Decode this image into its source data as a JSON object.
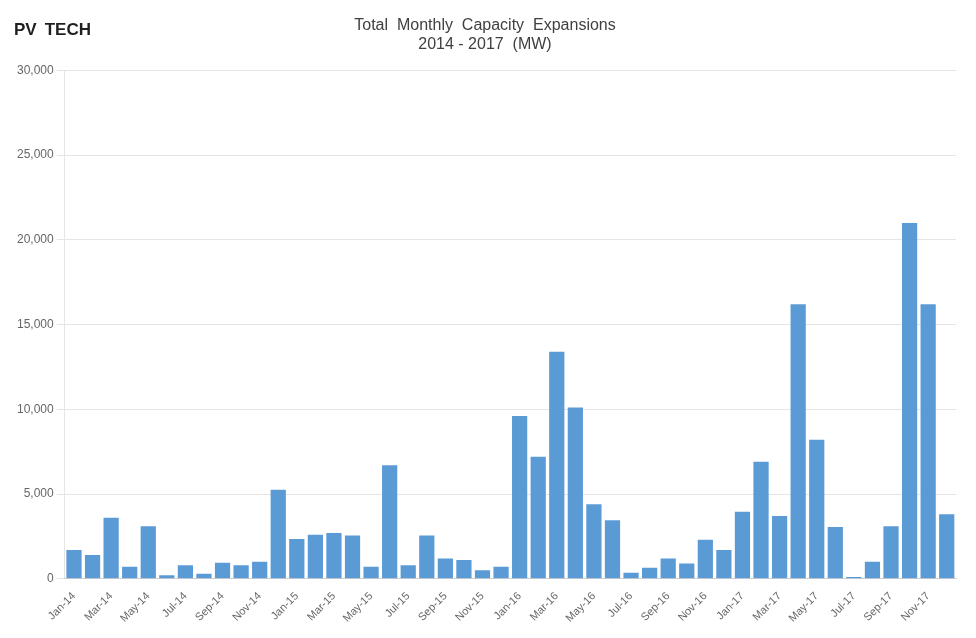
{
  "chart_data": {
    "type": "bar",
    "title": [
      "Total  Monthly  Capacity  Expansions",
      "2014 - 2017  (MW)"
    ],
    "annotations": [
      "PV",
      "TECH"
    ],
    "categories": [
      "Jan-14",
      null,
      "Mar-14",
      null,
      "May-14",
      null,
      "Jul-14",
      null,
      "Sep-14",
      null,
      "Nov-14",
      null,
      "Jan-15",
      null,
      "Mar-15",
      null,
      "May-15",
      null,
      "Jul-15",
      null,
      "Sep-15",
      null,
      "Nov-15",
      null,
      "Jan-16",
      null,
      "Mar-16",
      null,
      "May-16",
      null,
      "Jul-16",
      null,
      "Sep-16",
      null,
      "Nov-16",
      null,
      "Jan-17",
      null,
      "Mar-17",
      null,
      "May-17",
      null,
      "Jul-17",
      null,
      "Sep-17",
      null,
      "Nov-17",
      null
    ],
    "values": [
      1700,
      1400,
      3600,
      700,
      3100,
      200,
      800,
      300,
      950,
      800,
      1000,
      5250,
      2350,
      2600,
      2700,
      2550,
      700,
      6700,
      800,
      2550,
      1200,
      1100,
      500,
      700,
      9600,
      7200,
      13400,
      10100,
      4400,
      3450,
      350,
      650,
      1200,
      900,
      2300,
      1700,
      3950,
      6900,
      3700,
      16200,
      8200,
      3050,
      100,
      1000,
      3100,
      21000,
      16200,
      3800
    ],
    "color": "#5B9BD5",
    "ylim": [
      0,
      30000
    ],
    "yticks": [
      0,
      {
        "value": 5000,
        "label": "5,000"
      },
      {
        "value": 10000,
        "label": "10,000"
      },
      {
        "value": 15000,
        "label": "15,000"
      },
      {
        "value": 20000,
        "label": "20,000"
      },
      {
        "value": 25000,
        "label": "25,000"
      },
      {
        "value": 30000,
        "label": "30,000"
      }
    ],
    "grid": true
  }
}
